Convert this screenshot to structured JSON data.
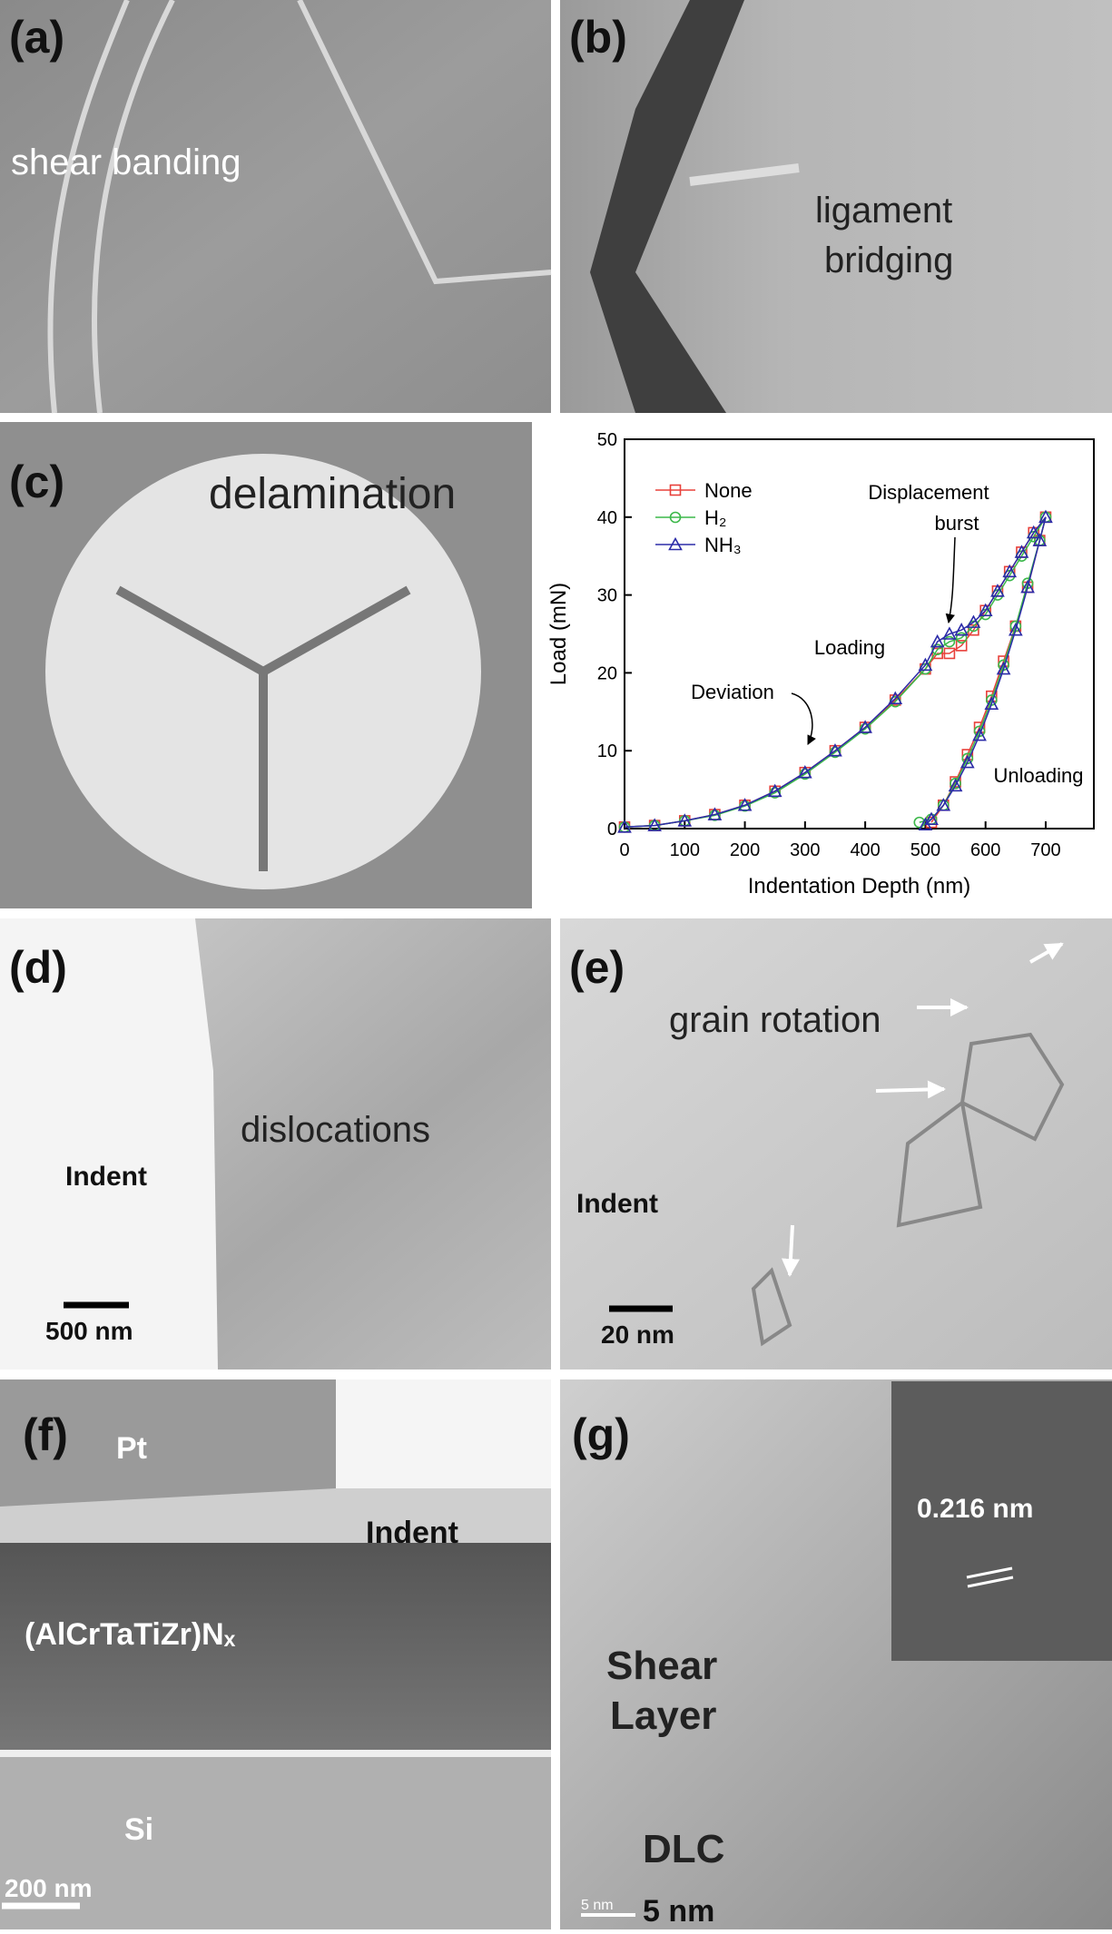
{
  "panels": [
    {
      "label": "(a)",
      "texts": [
        "shear banding"
      ]
    },
    {
      "label": "(b)",
      "texts": [
        "ligament",
        "bridging"
      ]
    },
    {
      "label": "(c)",
      "texts": [
        "delamination"
      ]
    },
    {
      "label": "(d)",
      "texts": [
        "dislocations",
        "Indent",
        "500 nm"
      ]
    },
    {
      "label": "(e)",
      "texts": [
        "grain rotation",
        "Indent",
        "20 nm"
      ]
    },
    {
      "label": "(f)",
      "texts": [
        "Pt",
        "Indent",
        "(AlCrTaTiZr)Nₓ",
        "Si",
        "200 nm"
      ]
    },
    {
      "label": "(g)",
      "texts": [
        "0.216 nm",
        "Shear",
        "Layer",
        "DLC",
        "5 nm",
        "5 nm"
      ]
    }
  ],
  "chart_data": {
    "type": "line",
    "x_label": "Indentation Depth (nm)",
    "y_label": "Load (mN)",
    "xlim": [
      0,
      780
    ],
    "ylim": [
      0,
      50
    ],
    "xticks": [
      0,
      100,
      200,
      300,
      400,
      500,
      600,
      700
    ],
    "yticks": [
      0,
      10,
      20,
      30,
      40,
      50
    ],
    "legend": "upper left",
    "annotations": [
      "Displacement",
      "burst",
      "Loading",
      "Deviation",
      "Unloading"
    ],
    "series": [
      {
        "name": "None",
        "color": "#e8403a",
        "marker": "square",
        "x": [
          0,
          50,
          100,
          150,
          200,
          250,
          300,
          350,
          400,
          450,
          500,
          520,
          540,
          560,
          580,
          600,
          620,
          640,
          660,
          680,
          700,
          690,
          670,
          650,
          630,
          610,
          590,
          570,
          550,
          530,
          510
        ],
        "values": [
          0.2,
          0.4,
          1,
          1.8,
          3,
          4.8,
          7.2,
          10,
          13,
          16.5,
          20.5,
          22.5,
          22.5,
          23.5,
          25.5,
          28,
          30.5,
          33,
          35.5,
          38,
          40,
          37,
          31,
          26,
          21.5,
          17,
          13,
          9.5,
          6,
          3,
          0.8
        ]
      },
      {
        "name": "H₂",
        "color": "#3cb84a",
        "marker": "circle",
        "x": [
          0,
          50,
          100,
          150,
          200,
          250,
          300,
          350,
          400,
          450,
          500,
          520,
          540,
          560,
          580,
          600,
          620,
          640,
          660,
          680,
          700,
          690,
          670,
          650,
          630,
          610,
          590,
          570,
          550,
          530,
          510,
          490
        ],
        "values": [
          0.2,
          0.4,
          1,
          1.7,
          2.9,
          4.6,
          7,
          9.8,
          12.8,
          16.3,
          20.5,
          23,
          24,
          24.5,
          26,
          27.5,
          30,
          32.5,
          35,
          37.5,
          40,
          37,
          31.5,
          26,
          21,
          16.5,
          12.5,
          9,
          5.8,
          3,
          1.2,
          0.8
        ]
      },
      {
        "name": "NH₃",
        "color": "#2b2ba8",
        "marker": "triangle",
        "x": [
          0,
          50,
          100,
          150,
          200,
          250,
          300,
          350,
          400,
          450,
          500,
          520,
          540,
          560,
          580,
          600,
          620,
          640,
          660,
          680,
          700,
          690,
          670,
          650,
          630,
          610,
          590,
          570,
          550,
          530,
          510,
          500
        ],
        "values": [
          0.2,
          0.4,
          1,
          1.8,
          3,
          4.8,
          7.2,
          10,
          13,
          16.7,
          21,
          24,
          25,
          25.5,
          26.5,
          28,
          30.5,
          33,
          35.5,
          38,
          40,
          37,
          31,
          25.5,
          20.5,
          16,
          12,
          8.5,
          5.5,
          3,
          1.2,
          0.5
        ]
      }
    ]
  }
}
